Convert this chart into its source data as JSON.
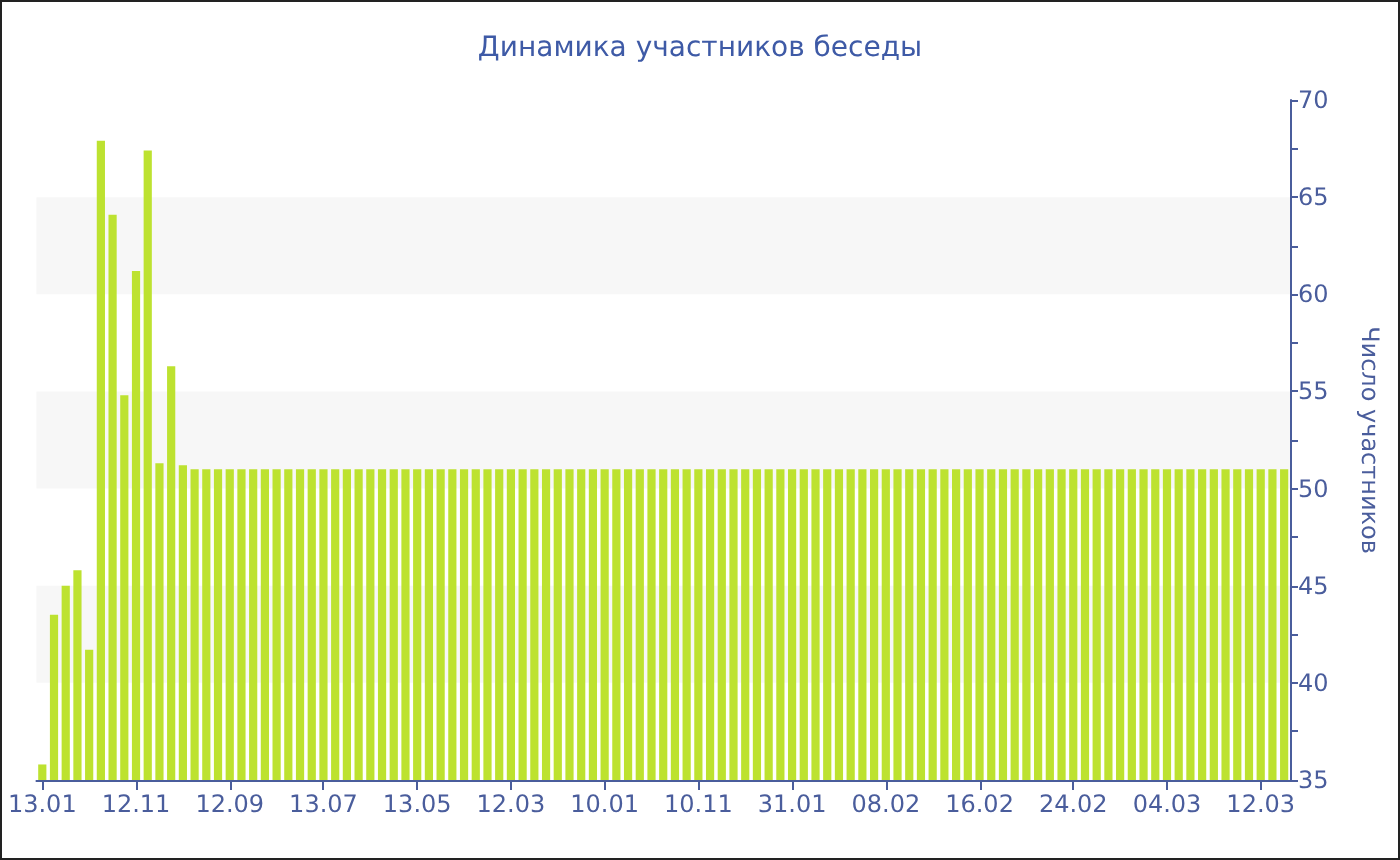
{
  "chart_data": {
    "type": "bar",
    "title": "Динамика участников беседы",
    "ylabel": "Число участников",
    "categories": [
      "13.01",
      null,
      null,
      null,
      null,
      null,
      null,
      null,
      "12.11",
      null,
      null,
      null,
      null,
      null,
      null,
      null,
      "12.09",
      null,
      null,
      null,
      null,
      null,
      null,
      null,
      "13.07",
      null,
      null,
      null,
      null,
      null,
      null,
      null,
      "13.05",
      null,
      null,
      null,
      null,
      null,
      null,
      null,
      "12.03",
      null,
      null,
      null,
      null,
      null,
      null,
      null,
      "10.01",
      null,
      null,
      null,
      null,
      null,
      null,
      null,
      "10.11",
      null,
      null,
      null,
      null,
      null,
      null,
      null,
      "31.01",
      null,
      null,
      null,
      null,
      null,
      null,
      null,
      "08.02",
      null,
      null,
      null,
      null,
      null,
      null,
      null,
      "16.02",
      null,
      null,
      null,
      null,
      null,
      null,
      null,
      "24.02",
      null,
      null,
      null,
      null,
      null,
      null,
      null,
      "04.03",
      null,
      null,
      null,
      null,
      null,
      null,
      null,
      "12.03",
      null,
      null
    ],
    "values": [
      35.8,
      43.5,
      45,
      45.8,
      41.7,
      67.9,
      64.1,
      54.8,
      61.2,
      67.4,
      51.3,
      56.3,
      51.2,
      51,
      51,
      51,
      51,
      51,
      51,
      51,
      51,
      51,
      51,
      51,
      51,
      51,
      51,
      51,
      51,
      51,
      51,
      51,
      51,
      51,
      51,
      51,
      51,
      51,
      51,
      51,
      51,
      51,
      51,
      51,
      51,
      51,
      51,
      51,
      51,
      51,
      51,
      51,
      51,
      51,
      51,
      51,
      51,
      51,
      51,
      51,
      51,
      51,
      51,
      51,
      51,
      51,
      51,
      51,
      51,
      51,
      51,
      51,
      51,
      51,
      51,
      51,
      51,
      51,
      51,
      51,
      51,
      51,
      51,
      51,
      51,
      51,
      51,
      51,
      51,
      51,
      51,
      51,
      51,
      51,
      51,
      51,
      51,
      51,
      51,
      51,
      51,
      51,
      51,
      51,
      51,
      51,
      51
    ],
    "color": "#bde230",
    "ylim": [
      35,
      70
    ],
    "yticks": [
      35,
      {
        "value": 37.5,
        "label": null
      },
      40,
      {
        "value": 42.5,
        "label": null
      },
      45,
      {
        "value": 47.5,
        "label": null
      },
      50,
      {
        "value": 52.5,
        "label": null
      },
      55,
      {
        "value": 57.5,
        "label": null
      },
      60,
      {
        "value": 62.5,
        "label": null
      },
      65,
      {
        "value": 67.5,
        "label": null
      },
      70
    ],
    "bands": [
      {
        "axis": "y",
        "from": 40,
        "to": 45,
        "color": "#f7f7f7"
      },
      {
        "axis": "y",
        "from": 50,
        "to": 55,
        "color": "#f7f7f7"
      },
      {
        "axis": "y",
        "from": 60,
        "to": 65,
        "color": "#f7f7f7"
      }
    ]
  }
}
